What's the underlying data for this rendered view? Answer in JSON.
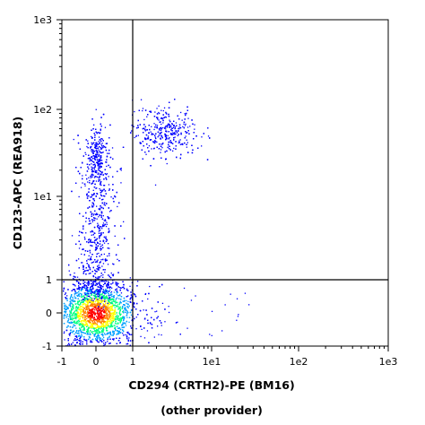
{
  "chart_data": {
    "type": "scatter",
    "xlabel": "CD294 (CRTH2)-PE (BM16)",
    "xlabel_line2": "(other provider)",
    "ylabel": "CD123-APC (REA918)",
    "x_ticks": [
      "-1",
      "0",
      "1",
      "1e1",
      "1e2",
      "1e3"
    ],
    "y_ticks": [
      "-1",
      "0",
      "1",
      "1e1",
      "1e2",
      "1e3"
    ],
    "x_range": [
      -1,
      1000
    ],
    "y_range": [
      -1,
      1000
    ],
    "axis_scale": "biexponential",
    "quadrant_gate": {
      "x": 1,
      "y": 1
    },
    "grid": false,
    "legend": "none",
    "populations": [
      {
        "x": 0.0,
        "y": 0.0,
        "sx": 0.55,
        "sy": 0.5,
        "weight": 0.55
      },
      {
        "x": 0.0,
        "y": 12,
        "sx": 0.25,
        "sy": 0.25,
        "weight": 0.25
      },
      {
        "x": 0.0,
        "y": 30,
        "sx": 0.1,
        "sy": 0.15,
        "weight": 0.05
      },
      {
        "x": 2.5,
        "y": 55,
        "sx": 0.2,
        "sy": 0.15,
        "weight": 0.12
      }
    ],
    "density_colors": [
      "#0000ff",
      "#00a0ff",
      "#00ff80",
      "#ffff00",
      "#ff8000",
      "#ff0000"
    ]
  }
}
